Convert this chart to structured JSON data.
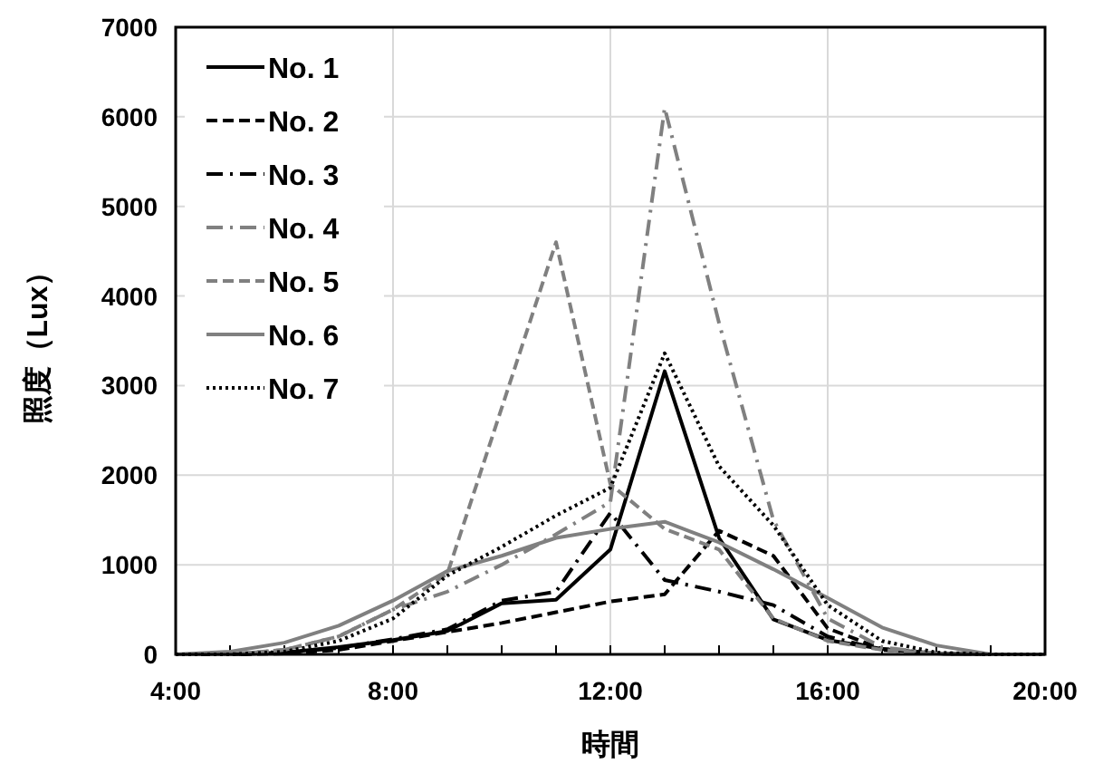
{
  "chart_data": {
    "type": "line",
    "xlabel": "時間",
    "ylabel": "照度（Lux）",
    "x": [
      4,
      5,
      6,
      7,
      8,
      9,
      10,
      11,
      12,
      13,
      14,
      15,
      16,
      17,
      18,
      19,
      20
    ],
    "series": [
      {
        "name": "No. 1",
        "color": "#000000",
        "line_style": "solid",
        "values": [
          0,
          0,
          20,
          80,
          160,
          260,
          570,
          610,
          1170,
          3160,
          1300,
          390,
          160,
          60,
          10,
          0,
          0
        ]
      },
      {
        "name": "No. 2",
        "color": "#000000",
        "line_style": "dashed",
        "values": [
          0,
          0,
          10,
          50,
          150,
          250,
          350,
          470,
          590,
          670,
          1380,
          1100,
          290,
          60,
          10,
          0,
          0
        ]
      },
      {
        "name": "No. 3",
        "color": "#000000",
        "line_style": "dashdot",
        "values": [
          0,
          0,
          20,
          70,
          170,
          280,
          600,
          700,
          1580,
          830,
          700,
          550,
          200,
          50,
          10,
          0,
          0
        ]
      },
      {
        "name": "No. 4",
        "color": "#808080",
        "line_style": "dashdot",
        "values": [
          0,
          0,
          50,
          200,
          500,
          700,
          1000,
          1340,
          1700,
          6100,
          3700,
          1500,
          400,
          80,
          10,
          0,
          0
        ]
      },
      {
        "name": "No. 5",
        "color": "#808080",
        "line_style": "dashed",
        "values": [
          0,
          0,
          50,
          200,
          500,
          900,
          2750,
          4600,
          1900,
          1400,
          1170,
          400,
          150,
          50,
          10,
          0,
          0
        ]
      },
      {
        "name": "No. 6",
        "color": "#808080",
        "line_style": "solid",
        "values": [
          0,
          30,
          130,
          320,
          600,
          930,
          1100,
          1300,
          1400,
          1480,
          1250,
          950,
          630,
          300,
          100,
          0,
          0
        ]
      },
      {
        "name": "No. 7",
        "color": "#000000",
        "line_style": "dotted",
        "values": [
          0,
          0,
          30,
          150,
          400,
          880,
          1200,
          1550,
          1860,
          3360,
          2100,
          1440,
          550,
          150,
          20,
          0,
          0
        ]
      }
    ],
    "xlim": [
      4,
      20
    ],
    "xticks": [
      {
        "value": 4,
        "label": "4:00"
      },
      {
        "value": 5,
        "label": null
      },
      {
        "value": 6,
        "label": null
      },
      {
        "value": 7,
        "label": null
      },
      {
        "value": 8,
        "label": "8:00"
      },
      {
        "value": 9,
        "label": null
      },
      {
        "value": 10,
        "label": null
      },
      {
        "value": 11,
        "label": null
      },
      {
        "value": 12,
        "label": "12:00"
      },
      {
        "value": 13,
        "label": null
      },
      {
        "value": 14,
        "label": null
      },
      {
        "value": 15,
        "label": null
      },
      {
        "value": 16,
        "label": "16:00"
      },
      {
        "value": 17,
        "label": null
      },
      {
        "value": 18,
        "label": null
      },
      {
        "value": 19,
        "label": null
      },
      {
        "value": 20,
        "label": "20:00"
      }
    ],
    "ylim": [
      0,
      7000
    ],
    "yticks": [
      0,
      1000,
      2000,
      3000,
      4000,
      5000,
      6000,
      7000
    ],
    "grid": true,
    "legend": "top left",
    "marker": "none"
  }
}
